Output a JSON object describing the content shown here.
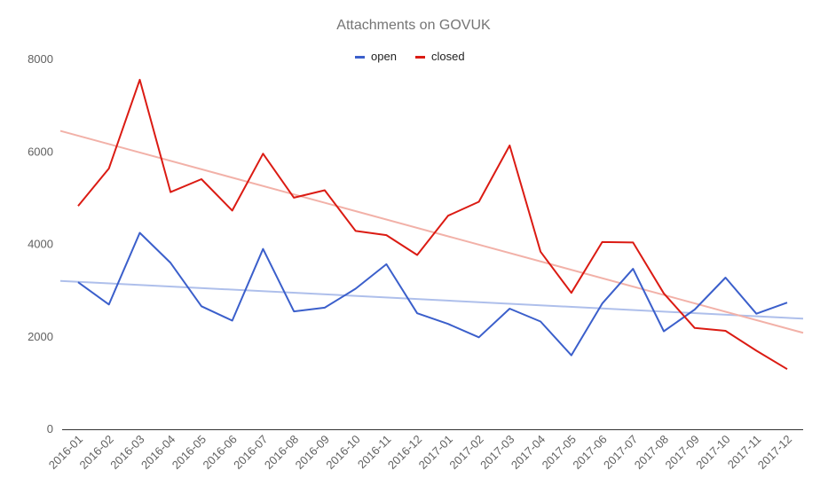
{
  "chart_data": {
    "type": "line",
    "title": "Attachments on GOVUK",
    "xlabel": "",
    "ylabel": "",
    "ylim": [
      0,
      8000
    ],
    "yticks": [
      0,
      2000,
      4000,
      6000,
      8000
    ],
    "grid": false,
    "legend": "top",
    "categories": [
      "2016-01",
      "2016-02",
      "2016-03",
      "2016-04",
      "2016-05",
      "2016-06",
      "2016-07",
      "2016-08",
      "2016-09",
      "2016-10",
      "2016-11",
      "2016-12",
      "2017-01",
      "2017-02",
      "2017-03",
      "2017-04",
      "2017-05",
      "2017-06",
      "2017-07",
      "2017-08",
      "2017-09",
      "2017-10",
      "2017-11",
      "2017-12"
    ],
    "series": [
      {
        "name": "open",
        "color": "#3b5fcb",
        "values": [
          3180,
          2700,
          4250,
          3600,
          2660,
          2350,
          3900,
          2550,
          2630,
          3040,
          3570,
          2510,
          2280,
          1990,
          2610,
          2330,
          1600,
          2720,
          3470,
          2120,
          2590,
          3280,
          2500,
          2740
        ]
      },
      {
        "name": "closed",
        "color": "#db1b13",
        "values": [
          4830,
          5640,
          7560,
          5130,
          5410,
          4730,
          5960,
          5010,
          5170,
          4290,
          4200,
          3770,
          4620,
          4920,
          6140,
          3840,
          2950,
          4050,
          4040,
          2940,
          2190,
          2130,
          1700,
          1300
        ]
      }
    ],
    "trendlines": [
      {
        "series": "open",
        "color": "#aebfeb",
        "start": 3190,
        "end": 2410
      },
      {
        "series": "closed",
        "color": "#f2b1a8",
        "start": 6350,
        "end": 2180
      }
    ]
  }
}
